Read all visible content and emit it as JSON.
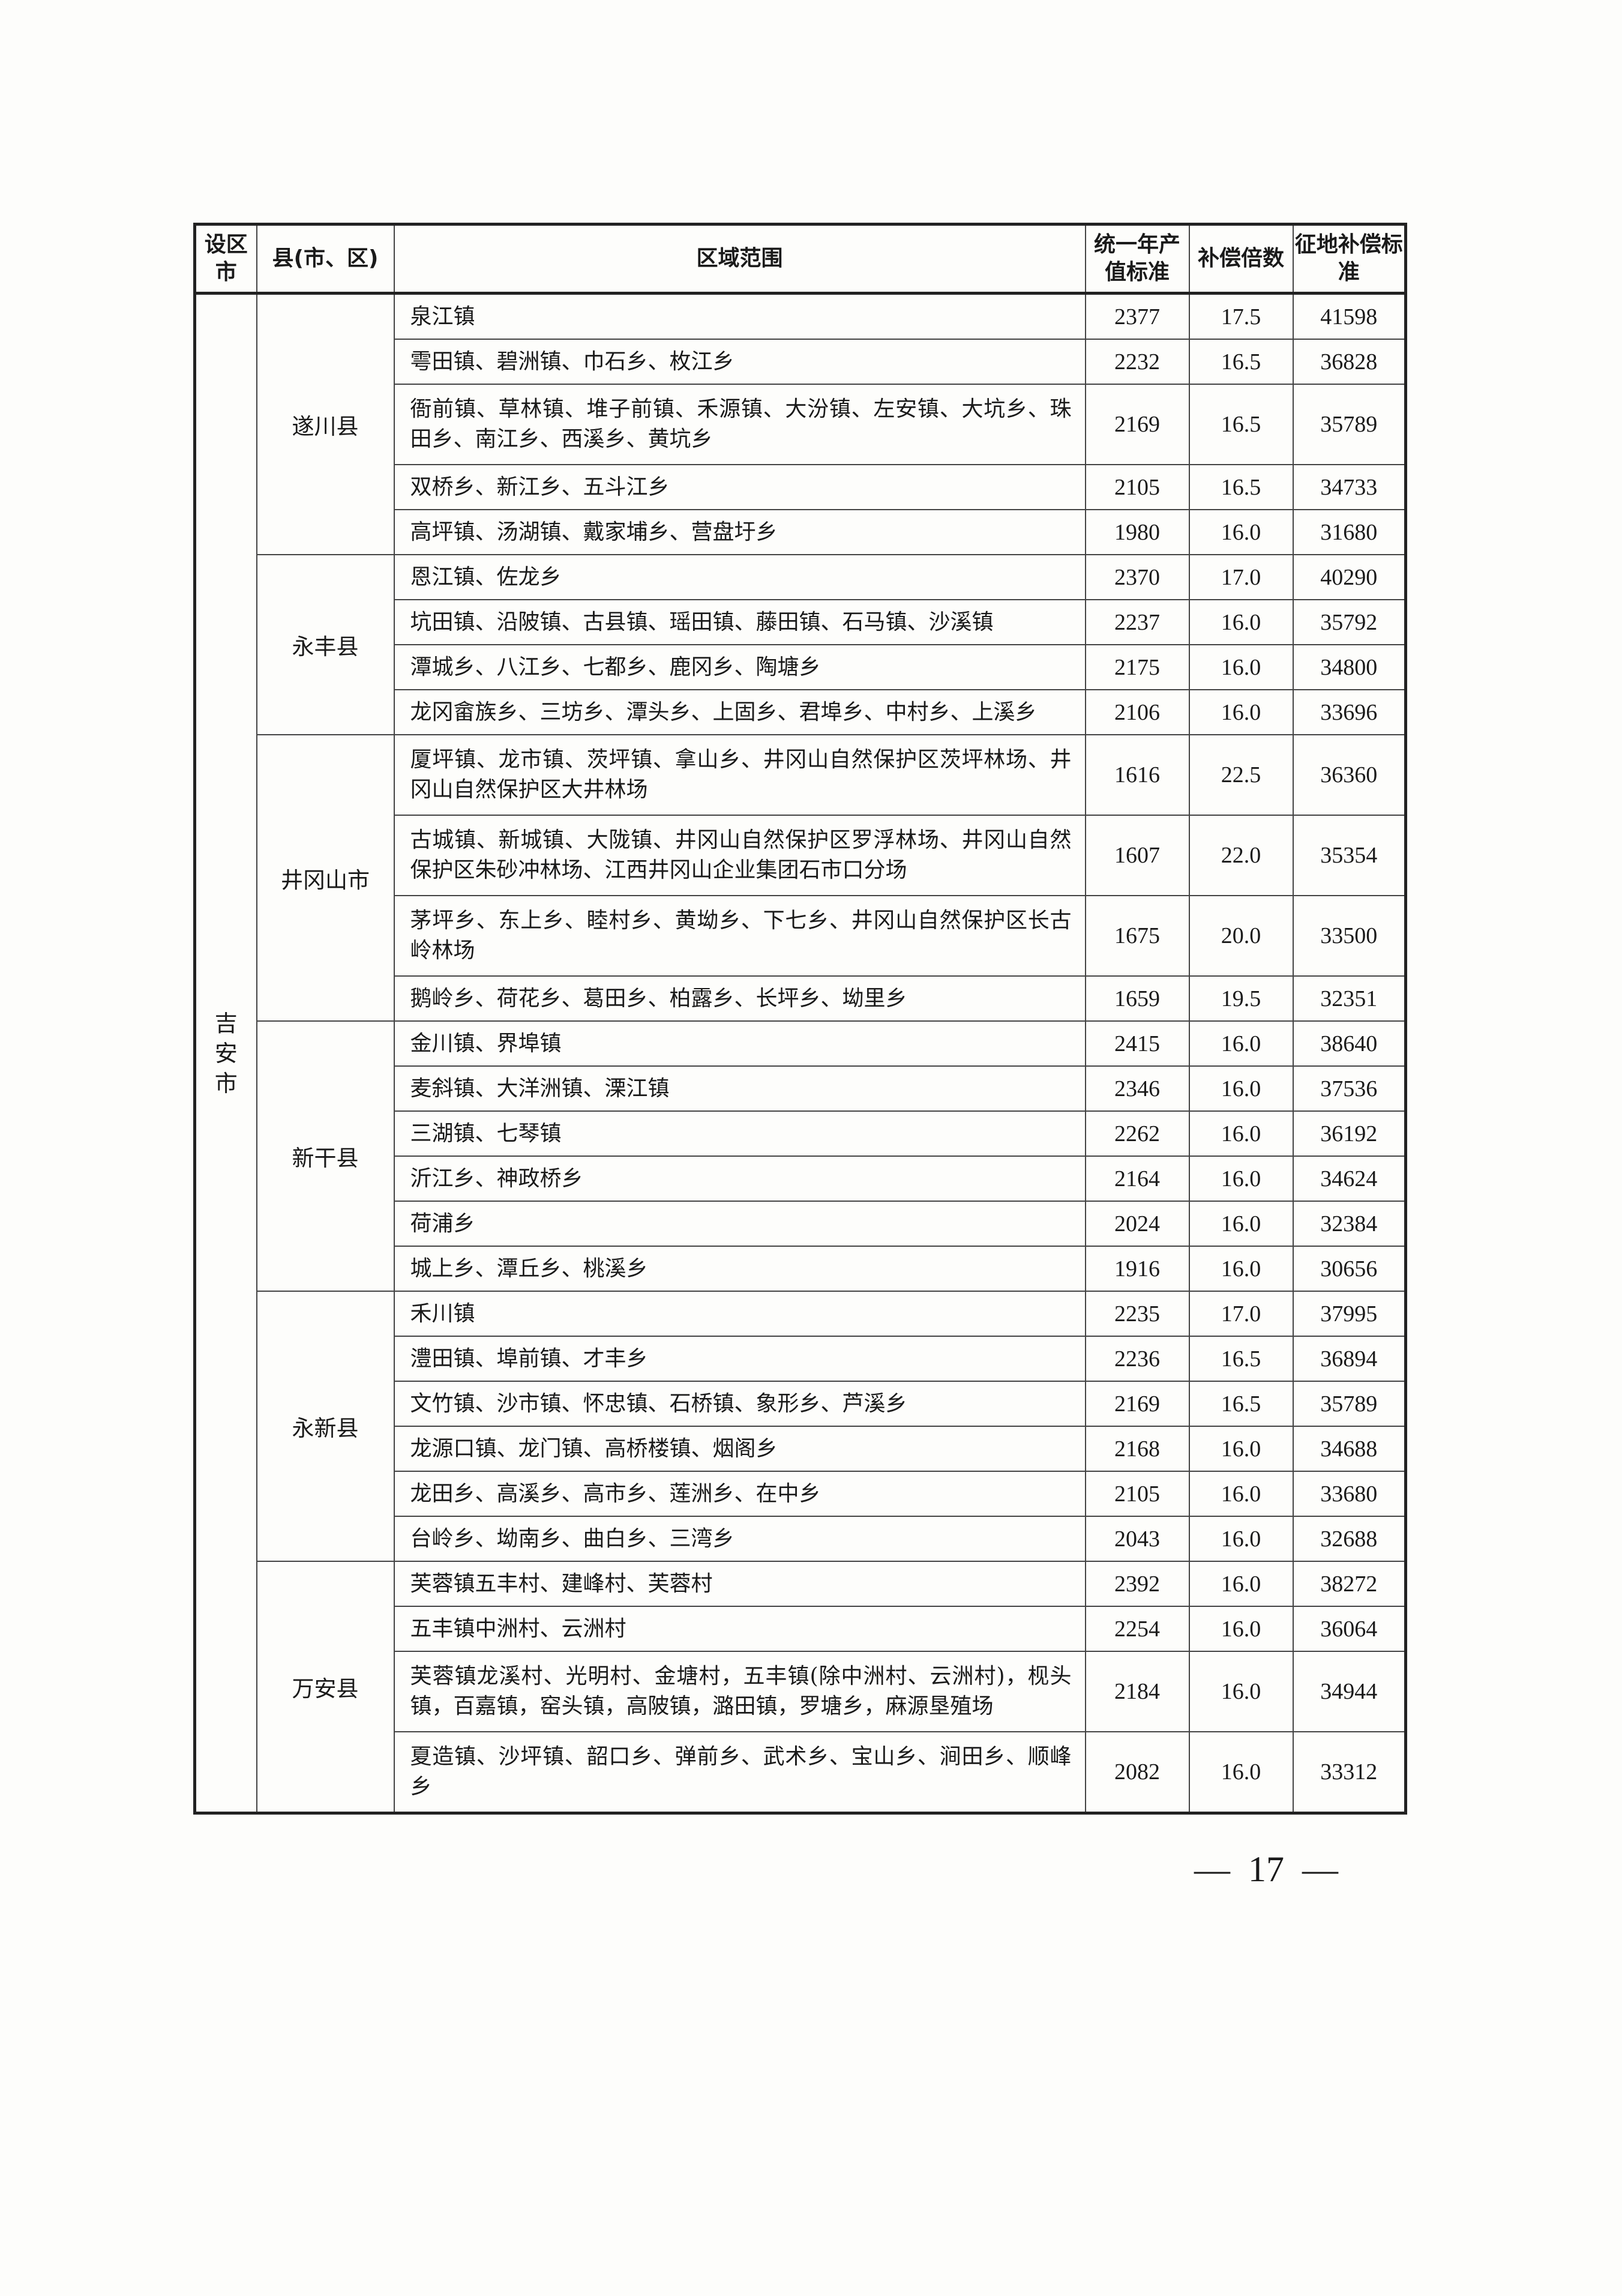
{
  "table": {
    "headers": [
      "设区市",
      "县(市、区)",
      "区域范围",
      "统一年产值标准",
      "补偿倍数",
      "征地补偿标准"
    ],
    "city": "吉安市",
    "counties": [
      {
        "name": "遂川县",
        "rows": [
          {
            "area": "泉江镇",
            "value": "2377",
            "multiplier": "17.5",
            "standard": "41598"
          },
          {
            "area": "雩田镇、碧洲镇、巾石乡、枚江乡",
            "value": "2232",
            "multiplier": "16.5",
            "standard": "36828"
          },
          {
            "area": "衙前镇、草林镇、堆子前镇、禾源镇、大汾镇、左安镇、大坑乡、珠田乡、南江乡、西溪乡、黄坑乡",
            "value": "2169",
            "multiplier": "16.5",
            "standard": "35789"
          },
          {
            "area": "双桥乡、新江乡、五斗江乡",
            "value": "2105",
            "multiplier": "16.5",
            "standard": "34733"
          },
          {
            "area": "高坪镇、汤湖镇、戴家埔乡、营盘圩乡",
            "value": "1980",
            "multiplier": "16.0",
            "standard": "31680"
          }
        ]
      },
      {
        "name": "永丰县",
        "rows": [
          {
            "area": "恩江镇、佐龙乡",
            "value": "2370",
            "multiplier": "17.0",
            "standard": "40290"
          },
          {
            "area": "坑田镇、沿陂镇、古县镇、瑶田镇、藤田镇、石马镇、沙溪镇",
            "value": "2237",
            "multiplier": "16.0",
            "standard": "35792"
          },
          {
            "area": "潭城乡、八江乡、七都乡、鹿冈乡、陶塘乡",
            "value": "2175",
            "multiplier": "16.0",
            "standard": "34800"
          },
          {
            "area": "龙冈畲族乡、三坊乡、潭头乡、上固乡、君埠乡、中村乡、上溪乡",
            "value": "2106",
            "multiplier": "16.0",
            "standard": "33696"
          }
        ]
      },
      {
        "name": "井冈山市",
        "rows": [
          {
            "area": "厦坪镇、龙市镇、茨坪镇、拿山乡、井冈山自然保护区茨坪林场、井冈山自然保护区大井林场",
            "value": "1616",
            "multiplier": "22.5",
            "standard": "36360"
          },
          {
            "area": "古城镇、新城镇、大陇镇、井冈山自然保护区罗浮林场、井冈山自然保护区朱砂冲林场、江西井冈山企业集团石市口分场",
            "value": "1607",
            "multiplier": "22.0",
            "standard": "35354"
          },
          {
            "area": "茅坪乡、东上乡、睦村乡、黄坳乡、下七乡、井冈山自然保护区长古岭林场",
            "value": "1675",
            "multiplier": "20.0",
            "standard": "33500"
          },
          {
            "area": "鹅岭乡、荷花乡、葛田乡、柏露乡、长坪乡、坳里乡",
            "value": "1659",
            "multiplier": "19.5",
            "standard": "32351"
          }
        ]
      },
      {
        "name": "新干县",
        "rows": [
          {
            "area": "金川镇、界埠镇",
            "value": "2415",
            "multiplier": "16.0",
            "standard": "38640"
          },
          {
            "area": "麦斜镇、大洋洲镇、溧江镇",
            "value": "2346",
            "multiplier": "16.0",
            "standard": "37536"
          },
          {
            "area": "三湖镇、七琴镇",
            "value": "2262",
            "multiplier": "16.0",
            "standard": "36192"
          },
          {
            "area": "沂江乡、神政桥乡",
            "value": "2164",
            "multiplier": "16.0",
            "standard": "34624"
          },
          {
            "area": "荷浦乡",
            "value": "2024",
            "multiplier": "16.0",
            "standard": "32384"
          },
          {
            "area": "城上乡、潭丘乡、桃溪乡",
            "value": "1916",
            "multiplier": "16.0",
            "standard": "30656"
          }
        ]
      },
      {
        "name": "永新县",
        "rows": [
          {
            "area": "禾川镇",
            "value": "2235",
            "multiplier": "17.0",
            "standard": "37995"
          },
          {
            "area": "澧田镇、埠前镇、才丰乡",
            "value": "2236",
            "multiplier": "16.5",
            "standard": "36894"
          },
          {
            "area": "文竹镇、沙市镇、怀忠镇、石桥镇、象形乡、芦溪乡",
            "value": "2169",
            "multiplier": "16.5",
            "standard": "35789"
          },
          {
            "area": "龙源口镇、龙门镇、高桥楼镇、烟阁乡",
            "value": "2168",
            "multiplier": "16.0",
            "standard": "34688"
          },
          {
            "area": "龙田乡、高溪乡、高市乡、莲洲乡、在中乡",
            "value": "2105",
            "multiplier": "16.0",
            "standard": "33680"
          },
          {
            "area": "台岭乡、坳南乡、曲白乡、三湾乡",
            "value": "2043",
            "multiplier": "16.0",
            "standard": "32688"
          }
        ]
      },
      {
        "name": "万安县",
        "rows": [
          {
            "area": "芙蓉镇五丰村、建峰村、芙蓉村",
            "value": "2392",
            "multiplier": "16.0",
            "standard": "38272"
          },
          {
            "area": "五丰镇中洲村、云洲村",
            "value": "2254",
            "multiplier": "16.0",
            "standard": "36064"
          },
          {
            "area": "芙蓉镇龙溪村、光明村、金塘村，五丰镇(除中洲村、云洲村)，枧头镇，百嘉镇，窑头镇，高陂镇，潞田镇，罗塘乡，麻源垦殖场",
            "value": "2184",
            "multiplier": "16.0",
            "standard": "34944"
          },
          {
            "area": "夏造镇、沙坪镇、韶口乡、弹前乡、武术乡、宝山乡、涧田乡、顺峰乡",
            "value": "2082",
            "multiplier": "16.0",
            "standard": "33312"
          }
        ]
      }
    ]
  },
  "page_number": "—  17  —"
}
